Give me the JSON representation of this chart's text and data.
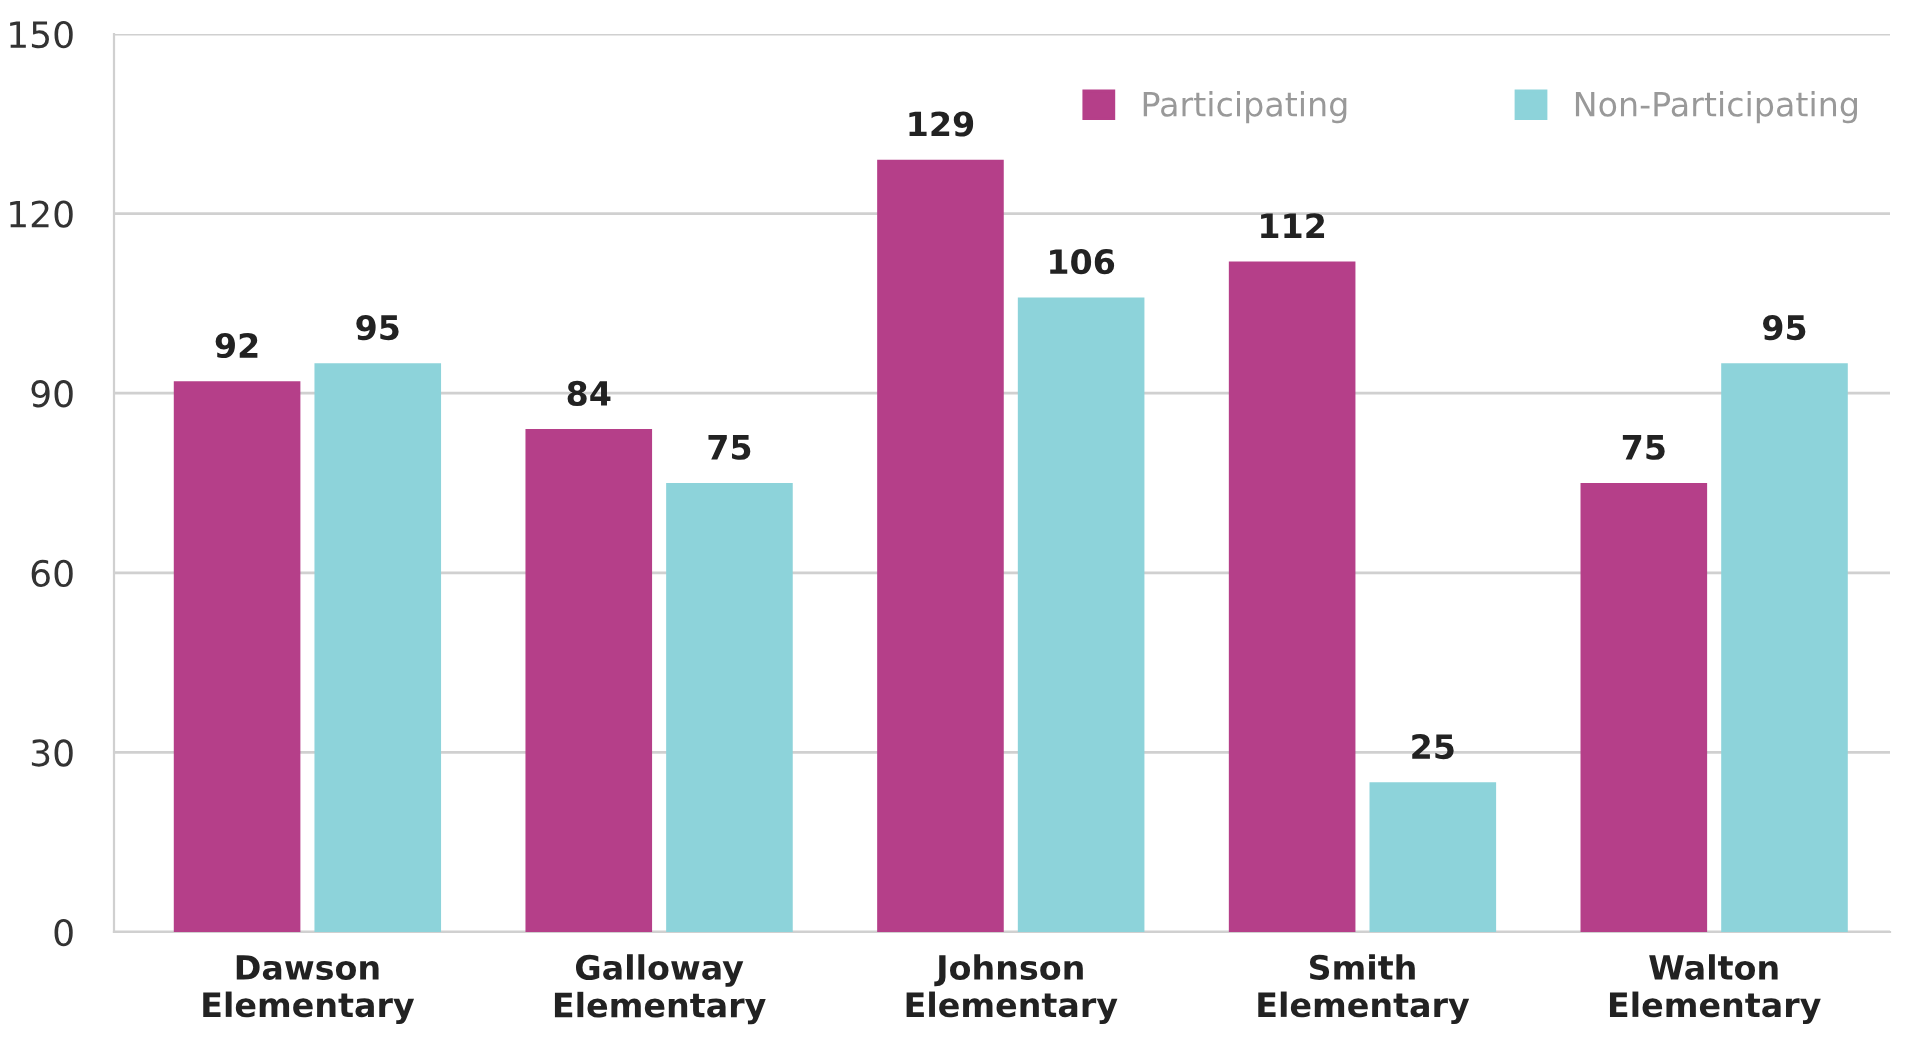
{
  "chart_data": {
    "type": "bar",
    "categories": [
      "Dawson\nElementary",
      "Galloway\nElementary",
      "Johnson\nElementary",
      "Smith\nElementary",
      "Walton\nElementary"
    ],
    "series": [
      {
        "name": "Participating",
        "color": "#b53f89",
        "values": [
          92,
          84,
          129,
          112,
          75
        ]
      },
      {
        "name": "Non-Participating",
        "color": "#8dd3da",
        "values": [
          95,
          75,
          106,
          25,
          95
        ]
      }
    ],
    "ylim": [
      0,
      150
    ],
    "yticks": [
      0,
      30,
      60,
      90,
      120,
      150
    ],
    "grid": "y",
    "legend": "top right",
    "data_labels": true
  }
}
